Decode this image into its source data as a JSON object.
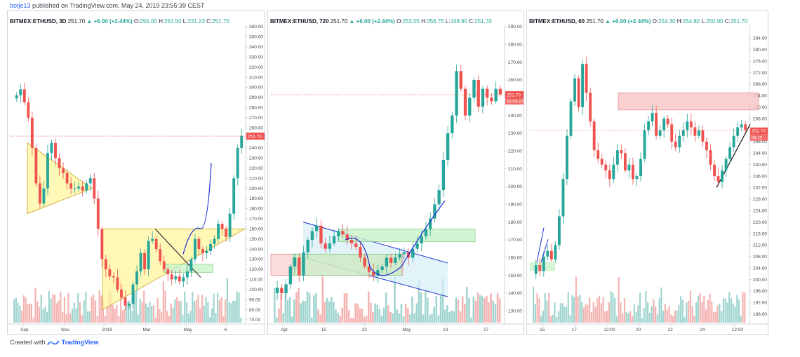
{
  "header": {
    "user": "botje13",
    "published": "published on TradingView.com, May 24, 2019 23:55:39 CEST"
  },
  "footer": {
    "created": "Created with",
    "brand": "TradingView"
  },
  "colors": {
    "up": "#26a69a",
    "down": "#ef5350",
    "volume_up": "#9fd4cf",
    "volume_down": "#f4b3b1",
    "price_label": "#ef5350",
    "trendline": "#1c2fd6",
    "triangle_fill": "#fff59d",
    "rect_green": "#c8f2c8",
    "rect_red": "#f8c6c6"
  },
  "chart_data": [
    {
      "type": "candlestick",
      "symbol": "BITMEX:ETHUSD",
      "interval": "3D",
      "last": "251.70",
      "change": "+6.00 (+2.44%)",
      "O": "255.00",
      "H": "261.50",
      "L": "231.23",
      "C": "251.70",
      "ylim": [
        70,
        360
      ],
      "y_ticks": [
        70,
        80,
        90,
        100,
        110,
        120,
        130,
        140,
        150,
        160,
        170,
        180,
        190,
        200,
        210,
        220,
        230,
        240,
        250,
        260,
        270,
        280,
        290,
        300,
        310,
        320,
        330,
        340,
        350,
        360
      ],
      "x_ticks": [
        "Sep",
        "Nov",
        "2019",
        "Mar",
        "May",
        "6"
      ],
      "price_label": "251.70",
      "price_line": 251.7,
      "closes": [
        292,
        298,
        285,
        270,
        240,
        205,
        185,
        200,
        235,
        245,
        230,
        220,
        215,
        205,
        200,
        200,
        202,
        198,
        205,
        210,
        190,
        160,
        130,
        120,
        113,
        112,
        100,
        92,
        84,
        86,
        105,
        118,
        136,
        120,
        148,
        150,
        140,
        128,
        120,
        115,
        110,
        113,
        108,
        112,
        118,
        130,
        150,
        140,
        136,
        138,
        145,
        150,
        165,
        160,
        152,
        175,
        210,
        240,
        252
      ]
    },
    {
      "type": "candlestick",
      "symbol": "BITMEX:ETHUSD",
      "interval": "720",
      "last": "251.70",
      "change": "+6.00 (+2.44%)",
      "O": "253.05",
      "H": "256.75",
      "L": "249.90",
      "C": "251.70",
      "ylim": [
        125,
        290
      ],
      "y_ticks": [
        130,
        140,
        150,
        160,
        170,
        180,
        190,
        200,
        210,
        220,
        230,
        240,
        250,
        260,
        270,
        280,
        290
      ],
      "x_ticks": [
        "Apr",
        "15",
        "23",
        "May",
        "13",
        "27"
      ],
      "price_label": "251.70",
      "countdown": "02:04:22",
      "price_line": 251.7,
      "closes": [
        143,
        140,
        145,
        155,
        160,
        150,
        163,
        170,
        175,
        178,
        168,
        165,
        168,
        172,
        175,
        173,
        170,
        168,
        166,
        160,
        155,
        152,
        150,
        153,
        155,
        160,
        157,
        160,
        162,
        163,
        160,
        165,
        168,
        172,
        176,
        182,
        190,
        198,
        215,
        230,
        240,
        265,
        255,
        240,
        250,
        260,
        245,
        255,
        250,
        248,
        255,
        252
      ]
    },
    {
      "type": "candlestick",
      "symbol": "BITMEX:ETHUSD",
      "interval": "60",
      "last": "251.70",
      "change": "+6.00 (+2.44%)",
      "O": "254.30",
      "H": "254.80",
      "L": "250.90",
      "C": "251.70",
      "ylim": [
        186,
        288
      ],
      "y_ticks": [
        188,
        192,
        196,
        200,
        204,
        208,
        212,
        216,
        220,
        224,
        228,
        232,
        236,
        240,
        244,
        248,
        252,
        256,
        260,
        264,
        268,
        272,
        276,
        280,
        284
      ],
      "x_ticks": [
        "15",
        "17",
        "12:00",
        "20",
        "22",
        "24",
        "12:00"
      ],
      "price_label": "251.70",
      "countdown": "04:22",
      "price_line": 251.7,
      "closes": [
        205,
        203,
        208,
        210,
        207,
        212,
        222,
        235,
        250,
        262,
        270,
        260,
        275,
        265,
        255,
        245,
        242,
        240,
        238,
        235,
        240,
        245,
        244,
        238,
        240,
        235,
        236,
        242,
        252,
        255,
        258,
        250,
        252,
        256,
        254,
        248,
        246,
        250,
        252,
        255,
        253,
        250,
        252,
        248,
        245,
        240,
        236,
        234,
        238,
        242,
        246,
        250,
        253,
        254,
        252
      ]
    }
  ]
}
